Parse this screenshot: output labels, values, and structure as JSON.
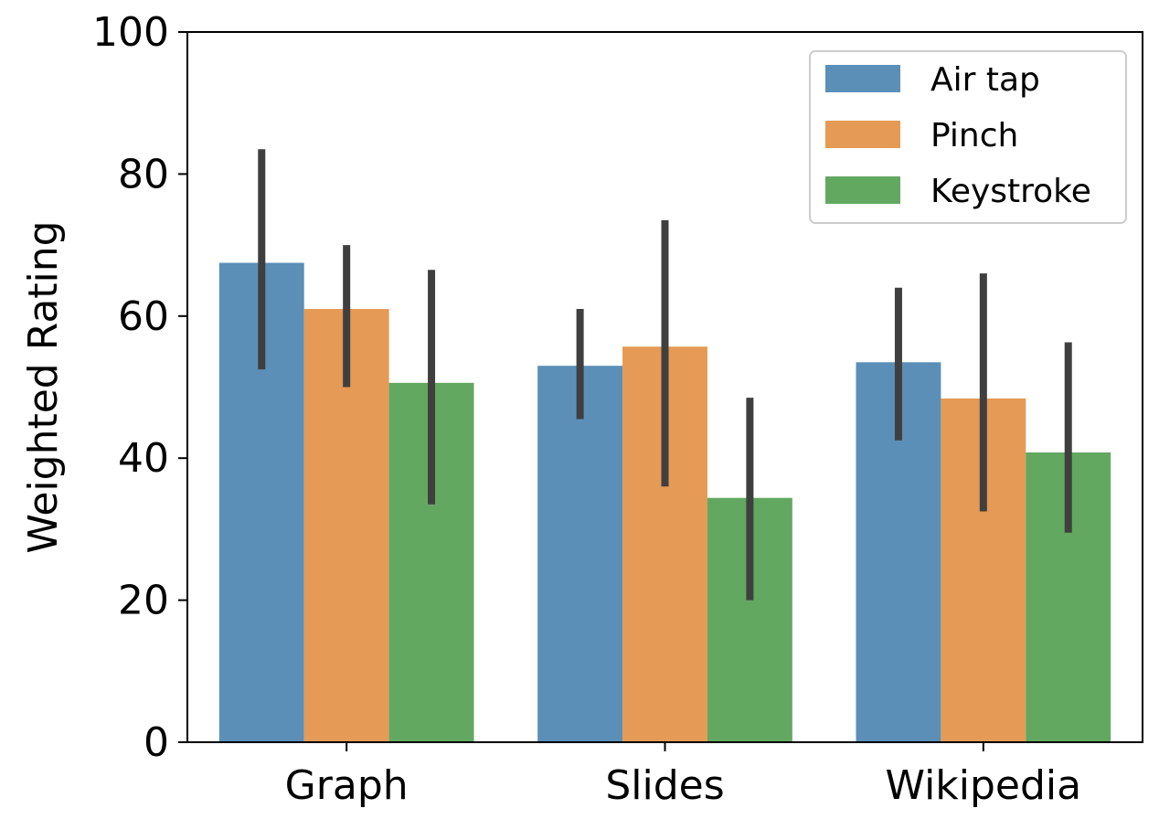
{
  "chart_data": {
    "type": "bar",
    "title": "",
    "xlabel": "",
    "ylabel": "Weighted Rating",
    "ylim": [
      0,
      100
    ],
    "yticks": [
      0,
      20,
      40,
      60,
      80,
      100
    ],
    "categories": [
      "Graph",
      "Slides",
      "Wikipedia"
    ],
    "legend_position": "top-right",
    "series": [
      {
        "name": "Air tap",
        "color": "#5b8fb8",
        "values": [
          67.5,
          53,
          53.5
        ],
        "err_low": [
          52.5,
          45.5,
          42.5
        ],
        "err_high": [
          83.5,
          61,
          64
        ]
      },
      {
        "name": "Pinch",
        "color": "#e59a55",
        "values": [
          61,
          55.7,
          48.4
        ],
        "err_low": [
          50,
          36,
          32.5
        ],
        "err_high": [
          70,
          73.5,
          66
        ]
      },
      {
        "name": "Keystroke",
        "color": "#62a860",
        "values": [
          50.6,
          34.4,
          40.8
        ],
        "err_low": [
          33.5,
          20,
          29.5
        ],
        "err_high": [
          66.5,
          48.5,
          56.3
        ]
      }
    ],
    "error_bar_color": "#3f3f3f"
  }
}
